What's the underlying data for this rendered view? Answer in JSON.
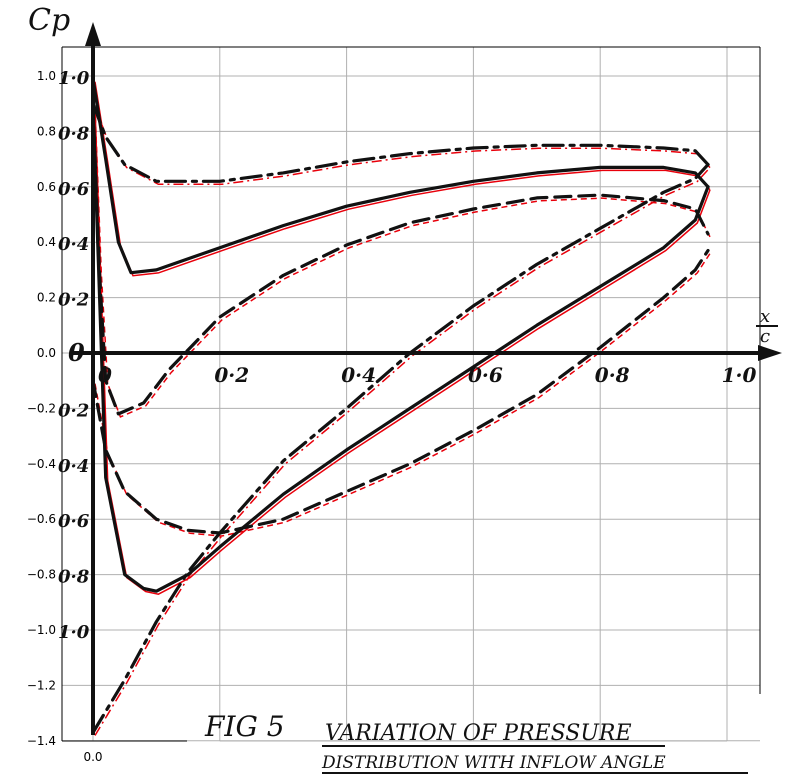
{
  "chart_data": {
    "type": "line",
    "xlim": [
      0.0,
      1.05
    ],
    "ylim": [
      -1.4,
      1.1
    ],
    "grid": true,
    "x_ticks": [
      "0.0"
    ],
    "y_ticks": [
      "1.0",
      "0.8",
      "0.6",
      "0.4",
      "0.2",
      "0.0",
      "−0.2",
      "−0.4",
      "−0.6",
      "−0.8",
      "−1.0",
      "−1.2",
      "−1.4"
    ],
    "hand_y_ticks": [
      "1·0",
      "0·8",
      "0·6",
      "0·4",
      "0·2",
      "0",
      "0·2",
      "0·4",
      "0·6",
      "0·8",
      "1·0"
    ],
    "hand_x_ticks": [
      "0",
      "0·2",
      "0·4",
      "0·6",
      "0·8",
      "1·0"
    ],
    "ylabel": "Cp",
    "xlabel_num": "x",
    "xlabel_den": "c",
    "caption_fig": "FIG 5",
    "caption_line1": "VARIATION OF PRESSURE",
    "caption_line2": "DISTRIBUTION WITH INFLOW ANGLE",
    "colors": {
      "sketch": "#111111",
      "model": "#e8000b",
      "grid": "#b0b0b0"
    },
    "series": [
      {
        "style": "solid",
        "upper": {
          "x": [
            0.0,
            0.02,
            0.04,
            0.06,
            0.1,
            0.2,
            0.3,
            0.4,
            0.5,
            0.6,
            0.7,
            0.8,
            0.9,
            0.95,
            0.97
          ],
          "y": [
            0.99,
            0.7,
            0.4,
            0.29,
            0.3,
            0.38,
            0.46,
            0.53,
            0.58,
            0.62,
            0.65,
            0.67,
            0.67,
            0.65,
            0.6
          ]
        },
        "lower": {
          "x": [
            0.0,
            0.02,
            0.05,
            0.08,
            0.1,
            0.15,
            0.2,
            0.3,
            0.4,
            0.5,
            0.6,
            0.7,
            0.8,
            0.9,
            0.95,
            0.97
          ],
          "y": [
            0.9,
            -0.45,
            -0.8,
            -0.85,
            -0.86,
            -0.8,
            -0.7,
            -0.51,
            -0.35,
            -0.2,
            -0.05,
            0.1,
            0.24,
            0.38,
            0.48,
            0.6
          ]
        }
      },
      {
        "style": "dashdot",
        "upper": {
          "x": [
            0.0,
            0.02,
            0.05,
            0.1,
            0.2,
            0.3,
            0.4,
            0.5,
            0.6,
            0.7,
            0.8,
            0.9,
            0.95,
            0.97
          ],
          "y": [
            0.9,
            0.78,
            0.68,
            0.62,
            0.62,
            0.65,
            0.69,
            0.72,
            0.74,
            0.75,
            0.75,
            0.74,
            0.73,
            0.68
          ]
        },
        "lower": {
          "x": [
            0.0,
            0.05,
            0.1,
            0.15,
            0.2,
            0.3,
            0.4,
            0.5,
            0.6,
            0.7,
            0.8,
            0.9,
            0.95,
            0.97
          ],
          "y": [
            -1.37,
            -1.18,
            -0.97,
            -0.79,
            -0.65,
            -0.39,
            -0.2,
            0.0,
            0.17,
            0.32,
            0.45,
            0.58,
            0.63,
            0.68
          ]
        }
      },
      {
        "style": "dashed",
        "upper": {
          "x": [
            0.0,
            0.01,
            0.02,
            0.04,
            0.08,
            0.12,
            0.2,
            0.3,
            0.4,
            0.5,
            0.6,
            0.7,
            0.8,
            0.9,
            0.95,
            0.97
          ],
          "y": [
            0.9,
            0.3,
            -0.1,
            -0.22,
            -0.18,
            -0.06,
            0.13,
            0.28,
            0.39,
            0.47,
            0.52,
            0.56,
            0.57,
            0.55,
            0.52,
            0.43
          ]
        },
        "lower": {
          "x": [
            0.0,
            0.02,
            0.05,
            0.1,
            0.15,
            0.2,
            0.3,
            0.4,
            0.5,
            0.6,
            0.7,
            0.8,
            0.9,
            0.95,
            0.97
          ],
          "y": [
            -0.1,
            -0.35,
            -0.5,
            -0.6,
            -0.64,
            -0.65,
            -0.6,
            -0.5,
            -0.4,
            -0.28,
            -0.15,
            0.02,
            0.2,
            0.3,
            0.37
          ]
        }
      }
    ]
  }
}
